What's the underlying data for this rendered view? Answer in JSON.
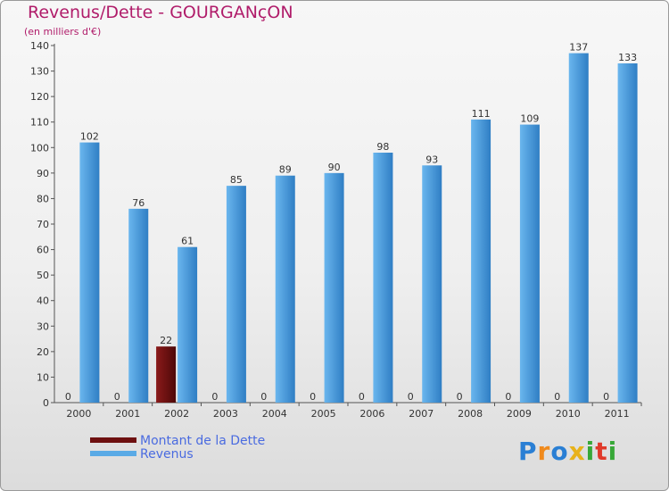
{
  "header": {
    "title": "Revenus/Dette - GOURGANçON",
    "subtitle": "(en milliers d'€)"
  },
  "colors": {
    "debt": "#6e1010",
    "revenue": "#5aaae6",
    "title": "#b01c6a",
    "legend_text": "#4a6be0"
  },
  "chart_data": {
    "type": "bar",
    "title": "Revenus/Dette - GOURGANçON",
    "ylabel": "(en milliers d'€)",
    "xlabel": "",
    "ylim": [
      0,
      140
    ],
    "yticks": [
      0,
      10,
      20,
      30,
      40,
      50,
      60,
      70,
      80,
      90,
      100,
      110,
      120,
      130,
      140
    ],
    "grid": false,
    "legend_position": "bottom-left",
    "categories": [
      "2000",
      "2001",
      "2002",
      "2003",
      "2004",
      "2005",
      "2006",
      "2007",
      "2008",
      "2009",
      "2010",
      "2011"
    ],
    "series": [
      {
        "name": "Montant de la Dette",
        "values": [
          0,
          0,
          22,
          0,
          0,
          0,
          0,
          0,
          0,
          0,
          0,
          0
        ]
      },
      {
        "name": "Revenus",
        "values": [
          102,
          76,
          61,
          85,
          89,
          90,
          98,
          93,
          111,
          109,
          137,
          133
        ]
      }
    ]
  },
  "legend": {
    "items": [
      {
        "label": "Montant de la Dette",
        "color": "#6e1010"
      },
      {
        "label": "Revenus",
        "color": "#5aaae6"
      }
    ]
  },
  "logo": {
    "letters": [
      "P",
      "r",
      "o",
      "x",
      "i",
      "t",
      "i"
    ],
    "colors": [
      "#2a7fd4",
      "#f08a1c",
      "#2a7fd4",
      "#e8b21a",
      "#38a838",
      "#e03a2a",
      "#38a838"
    ]
  }
}
